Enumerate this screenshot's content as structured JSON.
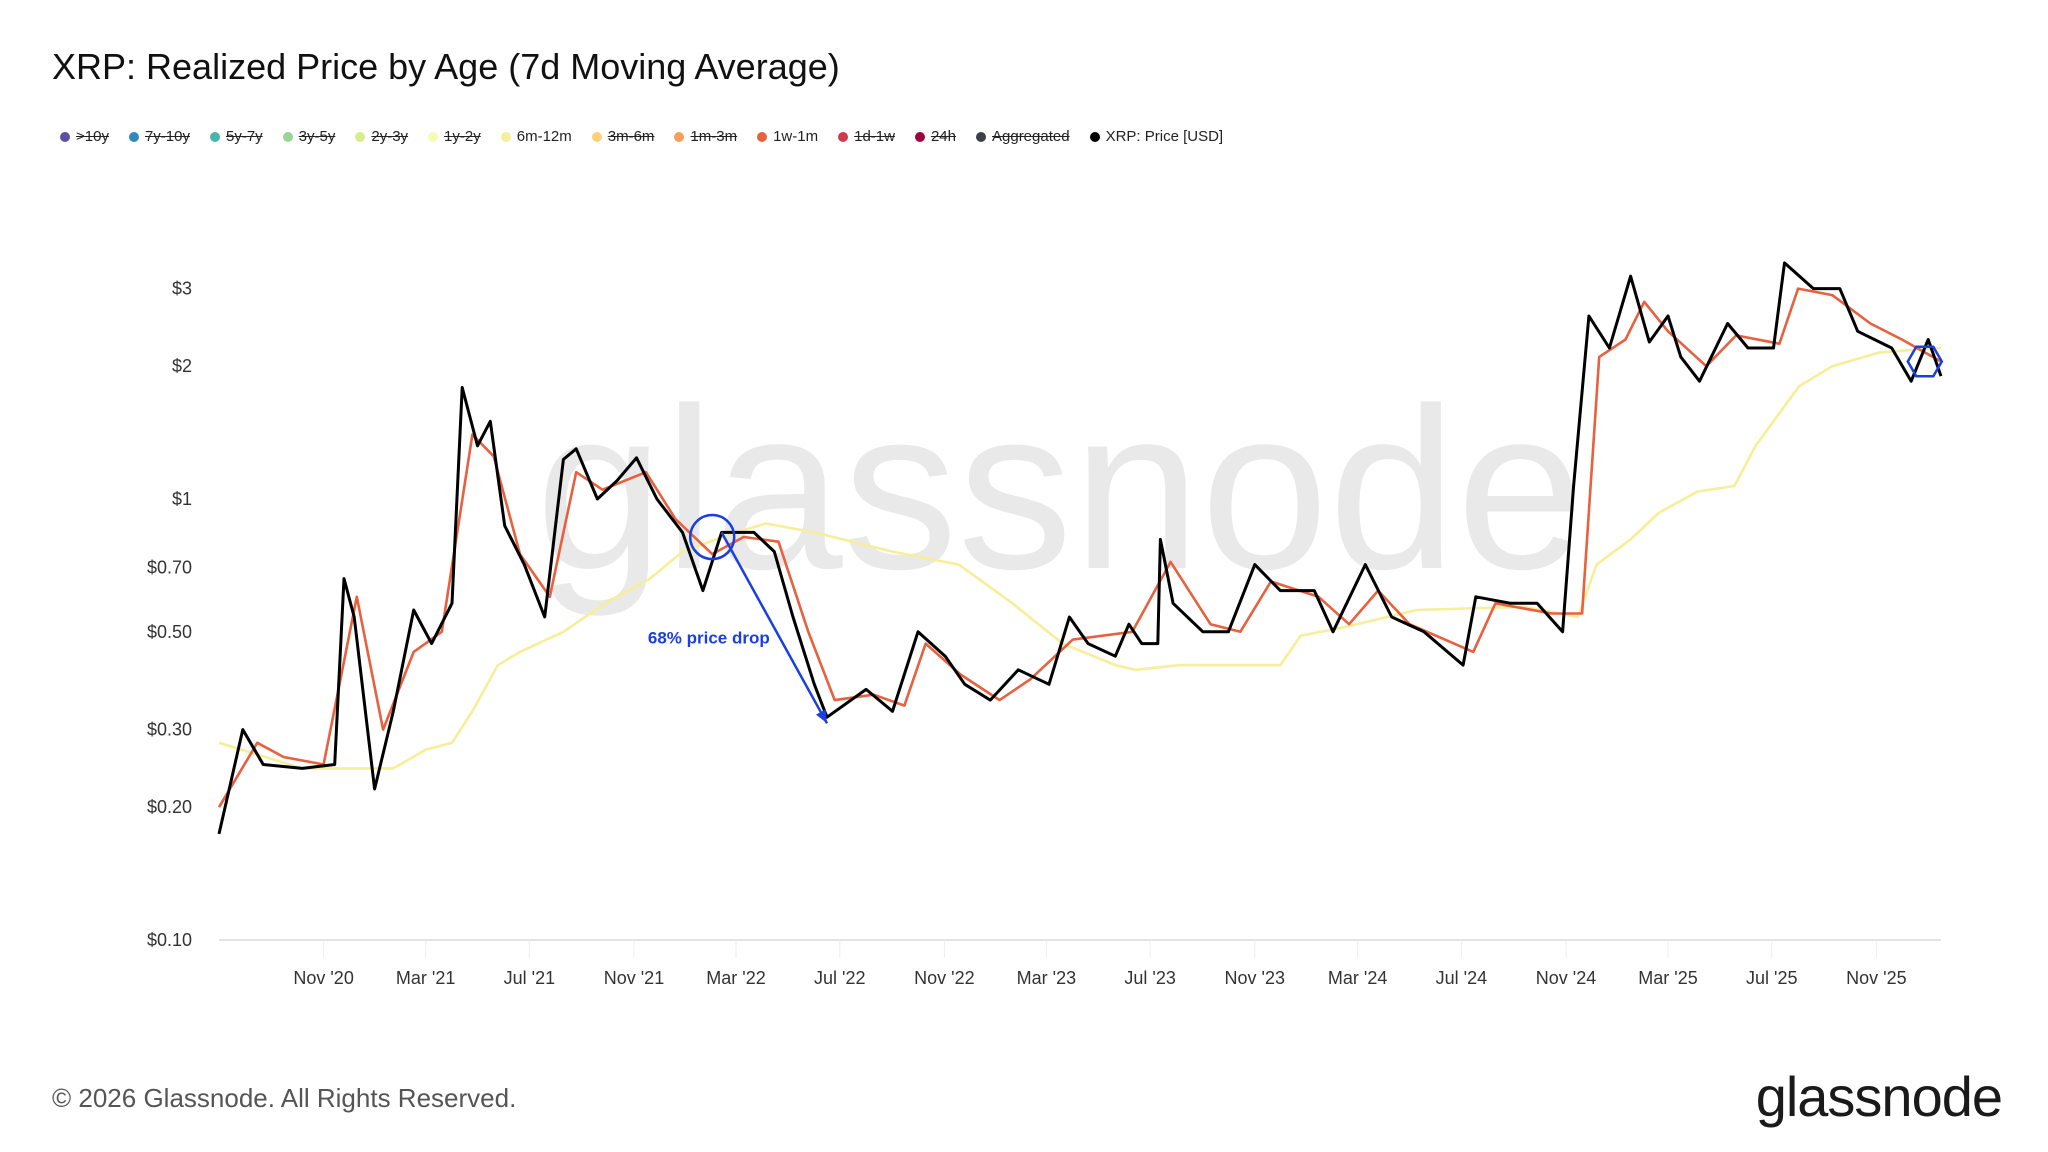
{
  "title": "XRP: Realized Price by Age (7d Moving Average)",
  "legend": [
    {
      "label": ">10y",
      "color": "#5e4fa2",
      "active": false
    },
    {
      "label": "7y-10y",
      "color": "#3288bd",
      "active": false
    },
    {
      "label": "5y-7y",
      "color": "#47b6a9",
      "active": false
    },
    {
      "label": "3y-5y",
      "color": "#99d594",
      "active": false
    },
    {
      "label": "2y-3y",
      "color": "#d4ee8c",
      "active": false
    },
    {
      "label": "1y-2y",
      "color": "#f5fbb2",
      "active": false
    },
    {
      "label": "6m-12m",
      "color": "#f7ee9a",
      "active": true
    },
    {
      "label": "3m-6m",
      "color": "#fdd07a",
      "active": false
    },
    {
      "label": "1m-3m",
      "color": "#f99d59",
      "active": false
    },
    {
      "label": "1w-1m",
      "color": "#e8613f",
      "active": true
    },
    {
      "label": "1d-1w",
      "color": "#d03a4c",
      "active": false
    },
    {
      "label": "24h",
      "color": "#9e0142",
      "active": false
    },
    {
      "label": "Aggregated",
      "color": "#3b3f46",
      "active": false
    },
    {
      "label": "XRP: Price [USD]",
      "color": "#000000",
      "active": true
    }
  ],
  "watermark": "glassnode",
  "footer": {
    "copyright": "© 2026 Glassnode. All Rights Reserved.",
    "logo": "glassnode"
  },
  "chart_data": {
    "type": "line",
    "title": "XRP: Realized Price by Age (7d Moving Average)",
    "yscale": "log",
    "ylim": [
      0.1,
      3.6
    ],
    "xlim": [
      "2020-07-01",
      "2026-01-16"
    ],
    "grid": false,
    "legend_position": "top-left",
    "yticks": [
      {
        "v": 3,
        "label": "$3"
      },
      {
        "v": 2,
        "label": "$2"
      },
      {
        "v": 1,
        "label": "$1"
      },
      {
        "v": 0.7,
        "label": "$0.70"
      },
      {
        "v": 0.5,
        "label": "$0.50"
      },
      {
        "v": 0.3,
        "label": "$0.30"
      },
      {
        "v": 0.2,
        "label": "$0.20"
      },
      {
        "v": 0.1,
        "label": "$0.10"
      }
    ],
    "xticks": [
      {
        "d": "2020-11-01",
        "label": "Nov '20"
      },
      {
        "d": "2021-03-01",
        "label": "Mar '21"
      },
      {
        "d": "2021-07-01",
        "label": "Jul '21"
      },
      {
        "d": "2021-11-01",
        "label": "Nov '21"
      },
      {
        "d": "2022-03-01",
        "label": "Mar '22"
      },
      {
        "d": "2022-07-01",
        "label": "Jul '22"
      },
      {
        "d": "2022-11-01",
        "label": "Nov '22"
      },
      {
        "d": "2023-03-01",
        "label": "Mar '23"
      },
      {
        "d": "2023-07-01",
        "label": "Jul '23"
      },
      {
        "d": "2023-11-01",
        "label": "Nov '23"
      },
      {
        "d": "2024-03-01",
        "label": "Mar '24"
      },
      {
        "d": "2024-07-01",
        "label": "Jul '24"
      },
      {
        "d": "2024-11-01",
        "label": "Nov '24"
      },
      {
        "d": "2025-03-01",
        "label": "Mar '25"
      },
      {
        "d": "2025-07-01",
        "label": "Jul '25"
      },
      {
        "d": "2025-11-01",
        "label": "Nov '25"
      }
    ],
    "series": [
      {
        "name": "6m-12m",
        "color": "#f7ee9a",
        "points": [
          [
            "2020-07-01",
            0.28
          ],
          [
            "2020-10-07",
            0.245
          ],
          [
            "2021-01-22",
            0.245
          ],
          [
            "2021-03-01",
            0.27
          ],
          [
            "2021-04-01",
            0.28
          ],
          [
            "2021-04-25",
            0.33
          ],
          [
            "2021-05-25",
            0.42
          ],
          [
            "2021-06-20",
            0.45
          ],
          [
            "2021-08-10",
            0.5
          ],
          [
            "2021-09-28",
            0.58
          ],
          [
            "2021-11-20",
            0.66
          ],
          [
            "2021-12-28",
            0.76
          ],
          [
            "2022-03-01",
            0.84
          ],
          [
            "2022-04-05",
            0.88
          ],
          [
            "2022-06-01",
            0.84
          ],
          [
            "2022-09-01",
            0.76
          ],
          [
            "2022-11-18",
            0.71
          ],
          [
            "2023-01-20",
            0.58
          ],
          [
            "2023-03-20",
            0.47
          ],
          [
            "2023-05-21",
            0.42
          ],
          [
            "2023-06-14",
            0.41
          ],
          [
            "2023-08-05",
            0.42
          ],
          [
            "2023-12-01",
            0.42
          ],
          [
            "2023-12-25",
            0.49
          ],
          [
            "2024-02-10",
            0.51
          ],
          [
            "2024-05-10",
            0.56
          ],
          [
            "2024-09-12",
            0.57
          ],
          [
            "2024-11-15",
            0.54
          ],
          [
            "2024-12-07",
            0.71
          ],
          [
            "2025-01-16",
            0.81
          ],
          [
            "2025-02-18",
            0.93
          ],
          [
            "2025-04-05",
            1.04
          ],
          [
            "2025-05-18",
            1.07
          ],
          [
            "2025-06-12",
            1.32
          ],
          [
            "2025-07-03",
            1.5
          ],
          [
            "2025-08-02",
            1.8
          ],
          [
            "2025-09-10",
            2.0
          ],
          [
            "2025-11-05",
            2.15
          ],
          [
            "2026-01-16",
            2.2
          ]
        ]
      },
      {
        "name": "1w-1m",
        "color": "#e8613f",
        "points": [
          [
            "2020-07-01",
            0.2
          ],
          [
            "2020-08-15",
            0.28
          ],
          [
            "2020-09-15",
            0.26
          ],
          [
            "2020-11-01",
            0.25
          ],
          [
            "2020-12-10",
            0.6
          ],
          [
            "2021-01-10",
            0.3
          ],
          [
            "2021-02-15",
            0.45
          ],
          [
            "2021-03-20",
            0.5
          ],
          [
            "2021-04-25",
            1.4
          ],
          [
            "2021-05-20",
            1.25
          ],
          [
            "2021-06-20",
            0.75
          ],
          [
            "2021-07-25",
            0.6
          ],
          [
            "2021-08-25",
            1.15
          ],
          [
            "2021-09-25",
            1.05
          ],
          [
            "2021-11-15",
            1.15
          ],
          [
            "2021-12-20",
            0.9
          ],
          [
            "2022-02-01",
            0.75
          ],
          [
            "2022-03-10",
            0.82
          ],
          [
            "2022-04-20",
            0.8
          ],
          [
            "2022-05-25",
            0.5
          ],
          [
            "2022-06-25",
            0.35
          ],
          [
            "2022-08-10",
            0.36
          ],
          [
            "2022-09-15",
            0.34
          ],
          [
            "2022-10-10",
            0.47
          ],
          [
            "2022-11-20",
            0.4
          ],
          [
            "2023-01-05",
            0.35
          ],
          [
            "2023-02-10",
            0.39
          ],
          [
            "2023-04-01",
            0.48
          ],
          [
            "2023-06-10",
            0.5
          ],
          [
            "2023-07-25",
            0.72
          ],
          [
            "2023-09-10",
            0.52
          ],
          [
            "2023-10-15",
            0.5
          ],
          [
            "2023-11-20",
            0.65
          ],
          [
            "2024-01-15",
            0.6
          ],
          [
            "2024-02-20",
            0.52
          ],
          [
            "2024-03-25",
            0.62
          ],
          [
            "2024-05-01",
            0.52
          ],
          [
            "2024-07-15",
            0.45
          ],
          [
            "2024-08-10",
            0.58
          ],
          [
            "2024-10-15",
            0.55
          ],
          [
            "2024-11-20",
            0.55
          ],
          [
            "2024-12-10",
            2.1
          ],
          [
            "2025-01-10",
            2.3
          ],
          [
            "2025-02-01",
            2.8
          ],
          [
            "2025-03-01",
            2.4
          ],
          [
            "2025-04-15",
            2.0
          ],
          [
            "2025-05-20",
            2.35
          ],
          [
            "2025-07-10",
            2.25
          ],
          [
            "2025-08-01",
            3.0
          ],
          [
            "2025-09-10",
            2.9
          ],
          [
            "2025-10-25",
            2.5
          ],
          [
            "2025-12-01",
            2.3
          ],
          [
            "2026-01-16",
            2.05
          ]
        ]
      },
      {
        "name": "XRP: Price [USD]",
        "color": "#000000",
        "points": [
          [
            "2020-07-01",
            0.174
          ],
          [
            "2020-07-29",
            0.3
          ],
          [
            "2020-08-22",
            0.25
          ],
          [
            "2020-10-07",
            0.245
          ],
          [
            "2020-11-14",
            0.25
          ],
          [
            "2020-11-25",
            0.66
          ],
          [
            "2020-12-07",
            0.54
          ],
          [
            "2020-12-31",
            0.22
          ],
          [
            "2021-01-22",
            0.33
          ],
          [
            "2021-02-15",
            0.56
          ],
          [
            "2021-03-08",
            0.47
          ],
          [
            "2021-04-01",
            0.58
          ],
          [
            "2021-04-13",
            1.79
          ],
          [
            "2021-05-01",
            1.32
          ],
          [
            "2021-05-16",
            1.5
          ],
          [
            "2021-06-02",
            0.87
          ],
          [
            "2021-06-25",
            0.71
          ],
          [
            "2021-07-19",
            0.54
          ],
          [
            "2021-08-10",
            1.23
          ],
          [
            "2021-08-25",
            1.3
          ],
          [
            "2021-09-19",
            1.0
          ],
          [
            "2021-10-12",
            1.1
          ],
          [
            "2021-11-04",
            1.24
          ],
          [
            "2021-11-28",
            1.0
          ],
          [
            "2021-12-28",
            0.84
          ],
          [
            "2022-01-21",
            0.62
          ],
          [
            "2022-02-12",
            0.84
          ],
          [
            "2022-03-22",
            0.84
          ],
          [
            "2022-04-15",
            0.76
          ],
          [
            "2022-05-07",
            0.54
          ],
          [
            "2022-06-01",
            0.38
          ],
          [
            "2022-06-16",
            0.32
          ],
          [
            "2022-08-01",
            0.37
          ],
          [
            "2022-09-01",
            0.33
          ],
          [
            "2022-10-01",
            0.5
          ],
          [
            "2022-11-02",
            0.44
          ],
          [
            "2022-11-25",
            0.38
          ],
          [
            "2022-12-25",
            0.35
          ],
          [
            "2023-01-27",
            0.41
          ],
          [
            "2023-03-04",
            0.38
          ],
          [
            "2023-03-28",
            0.54
          ],
          [
            "2023-04-19",
            0.47
          ],
          [
            "2023-05-21",
            0.44
          ],
          [
            "2023-06-06",
            0.52
          ],
          [
            "2023-06-21",
            0.47
          ],
          [
            "2023-07-10",
            0.47
          ],
          [
            "2023-07-13",
            0.81
          ],
          [
            "2023-07-28",
            0.58
          ],
          [
            "2023-09-01",
            0.5
          ],
          [
            "2023-10-01",
            0.5
          ],
          [
            "2023-11-01",
            0.71
          ],
          [
            "2023-12-01",
            0.62
          ],
          [
            "2024-01-10",
            0.62
          ],
          [
            "2024-02-01",
            0.5
          ],
          [
            "2024-03-10",
            0.71
          ],
          [
            "2024-04-10",
            0.54
          ],
          [
            "2024-05-18",
            0.5
          ],
          [
            "2024-07-03",
            0.42
          ],
          [
            "2024-07-18",
            0.6
          ],
          [
            "2024-08-28",
            0.58
          ],
          [
            "2024-09-28",
            0.58
          ],
          [
            "2024-10-28",
            0.5
          ],
          [
            "2024-11-10",
            1.07
          ],
          [
            "2024-11-28",
            2.6
          ],
          [
            "2024-12-22",
            2.2
          ],
          [
            "2025-01-16",
            3.2
          ],
          [
            "2025-02-07",
            2.27
          ],
          [
            "2025-03-01",
            2.6
          ],
          [
            "2025-03-16",
            2.1
          ],
          [
            "2025-04-07",
            1.85
          ],
          [
            "2025-05-10",
            2.5
          ],
          [
            "2025-06-03",
            2.2
          ],
          [
            "2025-07-03",
            2.2
          ],
          [
            "2025-07-16",
            3.43
          ],
          [
            "2025-08-19",
            3.0
          ],
          [
            "2025-09-19",
            3.0
          ],
          [
            "2025-10-10",
            2.4
          ],
          [
            "2025-11-19",
            2.2
          ],
          [
            "2025-12-12",
            1.85
          ],
          [
            "2026-01-01",
            2.3
          ],
          [
            "2026-01-16",
            1.9
          ]
        ]
      }
    ],
    "annotations": [
      {
        "type": "circle",
        "d": "2022-02-01",
        "v": 0.82,
        "color": "#1a3fe0"
      },
      {
        "type": "arrow",
        "from": [
          "2022-02-12",
          0.84
        ],
        "to": [
          "2022-06-16",
          0.31
        ],
        "color": "#1a3fe0"
      },
      {
        "type": "text",
        "text": "68% price drop",
        "d": "2022-01-28",
        "v": 0.485,
        "color": "#1a3fe0"
      },
      {
        "type": "hexagon",
        "d": "2025-12-28",
        "v": 2.05,
        "color": "#1a3fe0"
      }
    ]
  }
}
